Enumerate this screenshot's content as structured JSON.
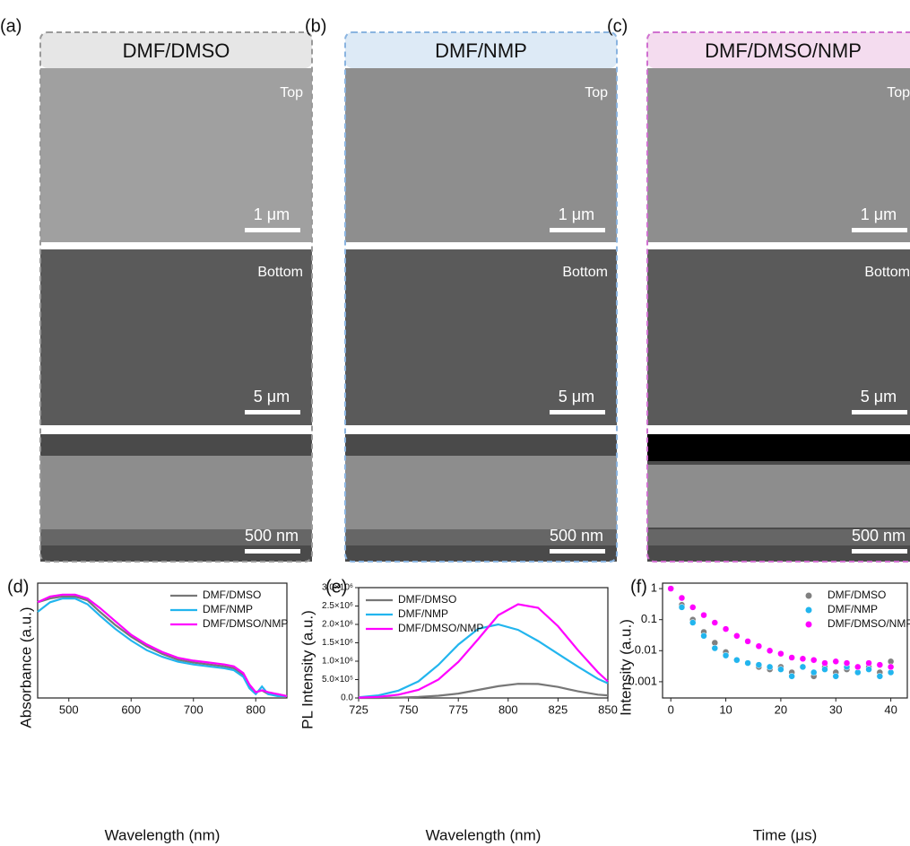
{
  "panels": [
    {
      "label": "(a)",
      "title": "DMF/DMSO",
      "top_label": "Top",
      "top_scale": "1 μm",
      "bottom_label": "Bottom",
      "bottom_scale": "5 μm",
      "cross_scale": "500 nm"
    },
    {
      "label": "(b)",
      "title": "DMF/NMP",
      "top_label": "Top",
      "top_scale": "1 μm",
      "bottom_label": "Bottom",
      "bottom_scale": "5 μm",
      "cross_scale": "500 nm"
    },
    {
      "label": "(c)",
      "title": "DMF/DMSO/NMP",
      "top_label": "Top",
      "top_scale": "1 μm",
      "bottom_label": "Bottom",
      "bottom_scale": "5 μm",
      "cross_scale": "500 nm"
    }
  ],
  "chart_data": [
    {
      "type": "line",
      "panel_label": "(d)",
      "xlabel": "Wavelength (nm)",
      "ylabel": "Absorbance (a.u.)",
      "legend": "upper right",
      "x": [
        450,
        470,
        490,
        510,
        530,
        550,
        575,
        600,
        625,
        650,
        675,
        700,
        725,
        750,
        765,
        780,
        790,
        800,
        810,
        820,
        835,
        850
      ],
      "xlim": [
        450,
        850
      ],
      "xticks": [
        500,
        600,
        700,
        800
      ],
      "ylim": [
        0,
        0.6
      ],
      "series": [
        {
          "name": "DMF/DMSO",
          "color": "#777777",
          "values": [
            0.5,
            0.52,
            0.53,
            0.53,
            0.51,
            0.45,
            0.38,
            0.32,
            0.27,
            0.23,
            0.2,
            0.185,
            0.175,
            0.165,
            0.155,
            0.12,
            0.06,
            0.03,
            0.04,
            0.02,
            0.02,
            0.01
          ]
        },
        {
          "name": "DMF/NMP",
          "color": "#22b5ee",
          "values": [
            0.45,
            0.5,
            0.52,
            0.52,
            0.49,
            0.43,
            0.36,
            0.3,
            0.25,
            0.215,
            0.19,
            0.175,
            0.165,
            0.155,
            0.145,
            0.11,
            0.05,
            0.02,
            0.06,
            0.02,
            0.01,
            0.01
          ]
        },
        {
          "name": "DMF/DMSO/NMP",
          "color": "#ff00ff",
          "values": [
            0.5,
            0.53,
            0.54,
            0.54,
            0.52,
            0.47,
            0.4,
            0.33,
            0.28,
            0.24,
            0.21,
            0.195,
            0.185,
            0.175,
            0.165,
            0.13,
            0.07,
            0.03,
            0.04,
            0.03,
            0.02,
            0.01
          ]
        }
      ]
    },
    {
      "type": "line",
      "panel_label": "(e)",
      "xlabel": "Wavelength (nm)",
      "ylabel": "PL Intensity (a.u.)",
      "legend": "upper left",
      "x": [
        725,
        735,
        745,
        755,
        765,
        775,
        785,
        795,
        805,
        815,
        825,
        835,
        845,
        850
      ],
      "xlim": [
        725,
        850
      ],
      "xticks": [
        725,
        750,
        775,
        800,
        825,
        850
      ],
      "ylim": [
        0,
        3000000
      ],
      "yticks": [
        {
          "value": 0,
          "label": "0.0"
        },
        {
          "value": 500000,
          "label": "5.0×10⁵"
        },
        {
          "value": 1000000,
          "label": "1.0×10⁶"
        },
        {
          "value": 1500000,
          "label": "1.5×10⁶"
        },
        {
          "value": 2000000,
          "label": "2.0×10⁶"
        },
        {
          "value": 2500000,
          "label": "2.5×10⁶"
        },
        {
          "value": 3000000,
          "label": "3.0×10⁶"
        }
      ],
      "series": [
        {
          "name": "DMF/DMSO",
          "color": "#777777",
          "values": [
            0,
            0,
            10000,
            30000,
            60000,
            120000,
            220000,
            320000,
            385000,
            380000,
            300000,
            180000,
            90000,
            70000
          ]
        },
        {
          "name": "DMF/NMP",
          "color": "#22b5ee",
          "values": [
            20000,
            70000,
            200000,
            450000,
            900000,
            1450000,
            1880000,
            2000000,
            1850000,
            1550000,
            1200000,
            850000,
            520000,
            400000
          ]
        },
        {
          "name": "DMF/DMSO/NMP",
          "color": "#ff00ff",
          "values": [
            10000,
            30000,
            90000,
            220000,
            500000,
            980000,
            1600000,
            2250000,
            2550000,
            2450000,
            1950000,
            1300000,
            700000,
            450000
          ]
        }
      ]
    },
    {
      "type": "scatter",
      "panel_label": "(f)",
      "xlabel": "Time (μs)",
      "ylabel": "Intensity (a.u.)",
      "legend": "upper right",
      "log_y": true,
      "x": [
        0,
        2,
        4,
        6,
        8,
        10,
        12,
        14,
        16,
        18,
        20,
        22,
        24,
        26,
        28,
        30,
        32,
        34,
        36,
        38,
        40
      ],
      "xlim": [
        -1.5,
        43
      ],
      "xticks": [
        0,
        10,
        20,
        30,
        40
      ],
      "ylim": [
        0.0003,
        1.5
      ],
      "yticks": [
        0.001,
        0.01,
        0.1,
        1
      ],
      "series": [
        {
          "name": "DMF/DMSO",
          "color": "#808080",
          "values": [
            1,
            0.3,
            0.1,
            0.04,
            0.018,
            0.009,
            0.005,
            0.004,
            0.003,
            0.0025,
            0.003,
            0.002,
            0.003,
            0.0015,
            0.003,
            0.002,
            0.0025,
            0.002,
            0.003,
            0.002,
            0.0045
          ]
        },
        {
          "name": "DMF/NMP",
          "color": "#22b5ee",
          "values": [
            1,
            0.25,
            0.08,
            0.03,
            0.012,
            0.007,
            0.005,
            0.004,
            0.0035,
            0.003,
            0.0025,
            0.0015,
            0.003,
            0.002,
            0.0025,
            0.0015,
            0.003,
            0.002,
            0.0025,
            0.0015,
            0.002
          ]
        },
        {
          "name": "DMF/DMSO/NMP",
          "color": "#ff00ff",
          "values": [
            1,
            0.5,
            0.25,
            0.14,
            0.08,
            0.05,
            0.03,
            0.02,
            0.014,
            0.01,
            0.008,
            0.006,
            0.0055,
            0.005,
            0.004,
            0.0045,
            0.004,
            0.003,
            0.004,
            0.0035,
            0.003
          ]
        }
      ]
    }
  ]
}
